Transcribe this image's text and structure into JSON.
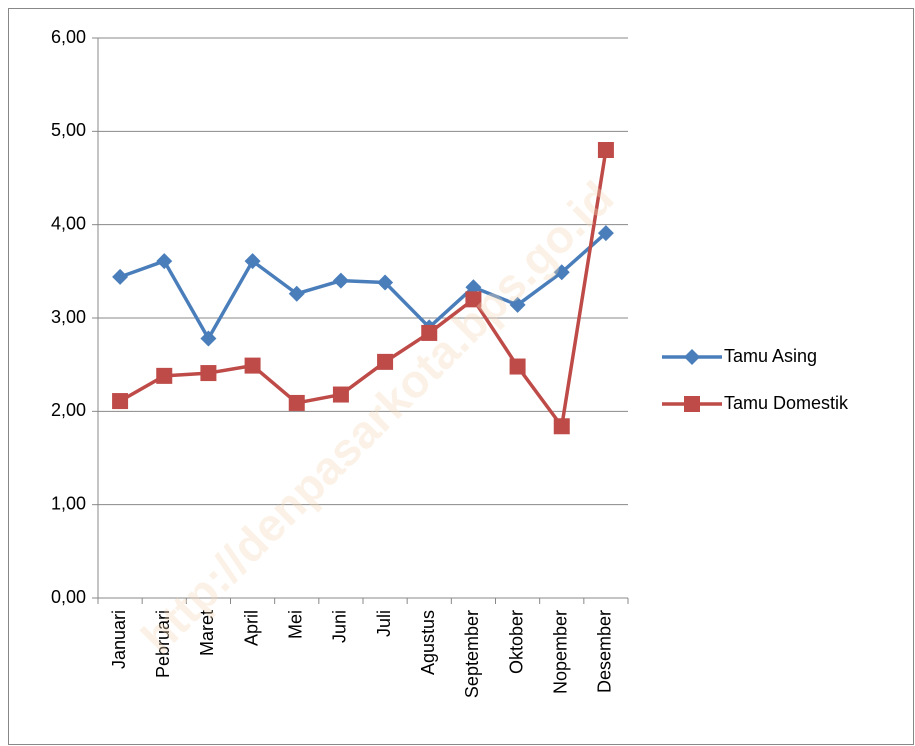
{
  "chart_data": {
    "type": "line",
    "categories": [
      "Januari",
      "Pebruari",
      "Maret",
      "April",
      "Mei",
      "Juni",
      "Juli",
      "Agustus",
      "September",
      "Oktober",
      "Nopember",
      "Desember"
    ],
    "series": [
      {
        "name": "Tamu Asing",
        "color": "#4a7ebb",
        "marker": "diamond",
        "values": [
          3.44,
          3.61,
          2.78,
          3.61,
          3.26,
          3.4,
          3.38,
          2.9,
          3.33,
          3.14,
          3.49,
          3.91
        ]
      },
      {
        "name": "Tamu Domestik",
        "color": "#be4b48",
        "marker": "square",
        "values": [
          2.11,
          2.38,
          2.41,
          2.49,
          2.09,
          2.18,
          2.53,
          2.84,
          3.2,
          2.48,
          1.84,
          4.8
        ]
      }
    ],
    "ylim": [
      0,
      6
    ],
    "yticks": [
      {
        "value": 0,
        "label": "0,00"
      },
      {
        "value": 1,
        "label": "1,00"
      },
      {
        "value": 2,
        "label": "2,00"
      },
      {
        "value": 3,
        "label": "3,00"
      },
      {
        "value": 4,
        "label": "4,00"
      },
      {
        "value": 5,
        "label": "5,00"
      },
      {
        "value": 6,
        "label": "6,00"
      }
    ],
    "grid": true,
    "legend": "right",
    "watermark": "http://denpasarkota.bps.go.id"
  }
}
